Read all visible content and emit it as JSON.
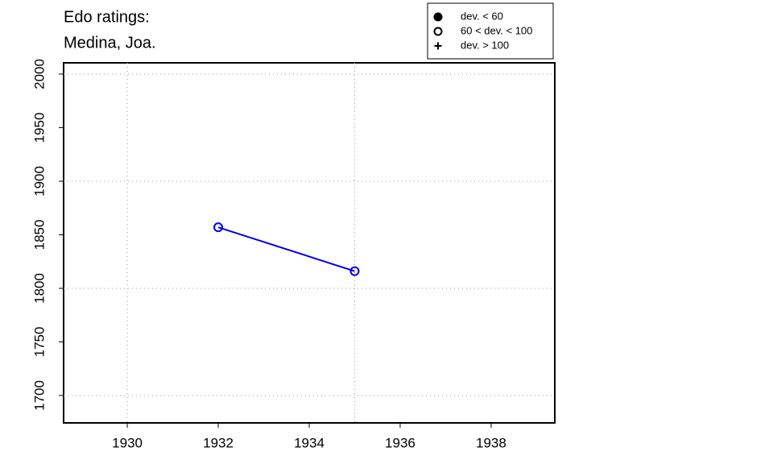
{
  "chart_data": {
    "type": "line",
    "title": [
      "Edo ratings:",
      "Medina, Joa."
    ],
    "x": [
      1932,
      1935
    ],
    "series": [
      {
        "color": "#0000ee",
        "marker": "open",
        "values": [
          1857,
          1816
        ]
      }
    ],
    "xlim": [
      1928.6,
      1939.4
    ],
    "xticks": [
      1930,
      1932,
      1934,
      1936,
      1938
    ],
    "ylim": [
      1674.4,
      2010.5
    ],
    "yticks": [
      1700,
      1750,
      1800,
      1850,
      1900,
      1950,
      2000
    ],
    "xgrid": [
      1930,
      1935
    ],
    "ygrid": [
      1700,
      1800,
      1900,
      2000
    ],
    "legend": {
      "position": "top-right",
      "items": [
        {
          "label": "dev. < 60",
          "symbol": "filled"
        },
        {
          "label": "60 < dev. < 100",
          "symbol": "open"
        },
        {
          "label": "dev. > 100",
          "symbol": "plus"
        }
      ]
    }
  }
}
